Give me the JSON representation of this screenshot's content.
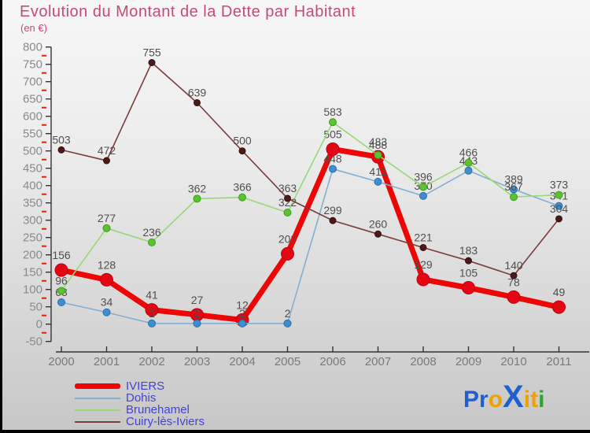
{
  "title": "Evolution du Montant de la Dette par Habitant",
  "subtitle": "(en €)",
  "colors": {
    "title": "#c64a78",
    "background_top": "#f7f7f7",
    "background_bottom": "#c7c7c7",
    "axis": "#333333",
    "minor_tick": "#dd2200",
    "ytick_label": "#8a8a8a",
    "xtick_label": "#7a7a7a",
    "value_label": "#4f4f4f",
    "legend_text": "#4343d0"
  },
  "chart_data": {
    "type": "line",
    "categories": [
      "2000",
      "2001",
      "2002",
      "2003",
      "2004",
      "2005",
      "2006",
      "2007",
      "2008",
      "2009",
      "2010",
      "2011"
    ],
    "series": [
      {
        "name": "IVIERS",
        "line_color": "#ee0505",
        "dot_color": "#e30613",
        "dot_edge": "#c00010",
        "line_width": 7,
        "dot_radius": 8,
        "values": [
          156,
          128,
          41,
          27,
          12,
          203,
          505,
          483,
          129,
          105,
          78,
          49
        ]
      },
      {
        "name": "Dohis",
        "line_color": "#85aed1",
        "dot_color": "#3e8ed0",
        "dot_edge": "#2a6da8",
        "line_width": 1.6,
        "dot_radius": 4.5,
        "values": [
          63,
          34,
          2,
          2,
          2,
          2,
          448,
          411,
          370,
          443,
          389,
          341
        ]
      },
      {
        "name": "Brunehamel",
        "line_color": "#97d877",
        "dot_color": "#5cc230",
        "dot_edge": "#3f9e1e",
        "line_width": 1.6,
        "dot_radius": 4.5,
        "values": [
          96,
          277,
          236,
          362,
          366,
          322,
          583,
          488,
          396,
          466,
          367,
          373
        ]
      },
      {
        "name": "Cuiry-lès-Iviers",
        "line_color": "#7d3c3c",
        "dot_color": "#4a1a1a",
        "dot_edge": "#351010",
        "line_width": 1.6,
        "dot_radius": 4,
        "values": [
          503,
          472,
          755,
          639,
          500,
          363,
          299,
          260,
          221,
          183,
          140,
          304
        ]
      }
    ],
    "ylim": [
      -50,
      800
    ],
    "ytick_step": 50,
    "ytick_labels": [
      800,
      750,
      700,
      650,
      600,
      550,
      500,
      450,
      400,
      350,
      300,
      250,
      200,
      150,
      100,
      50,
      0,
      -50
    ],
    "grid": false,
    "legend_position": "bottom-left",
    "value_labels_shown": true
  },
  "legend": [
    {
      "label": "IVIERS"
    },
    {
      "label": "Dohis"
    },
    {
      "label": "Brunehamel"
    },
    {
      "label": "Cuiry-lès-Iviers"
    }
  ],
  "logo": {
    "name": "Proxiti",
    "letters": [
      {
        "ch": "P",
        "color": "#1f5fd0",
        "size": 30
      },
      {
        "ch": "r",
        "color": "#1f5fd0",
        "size": 30
      },
      {
        "ch": "o",
        "color": "#f0a000",
        "size": 30
      },
      {
        "ch": "X",
        "color": "#1f5fd0",
        "size": 40
      },
      {
        "ch": "i",
        "color": "#f0a000",
        "size": 30
      },
      {
        "ch": "t",
        "color": "#f0a000",
        "size": 30
      },
      {
        "ch": "i",
        "color": "#2fa32f",
        "size": 30
      }
    ]
  }
}
